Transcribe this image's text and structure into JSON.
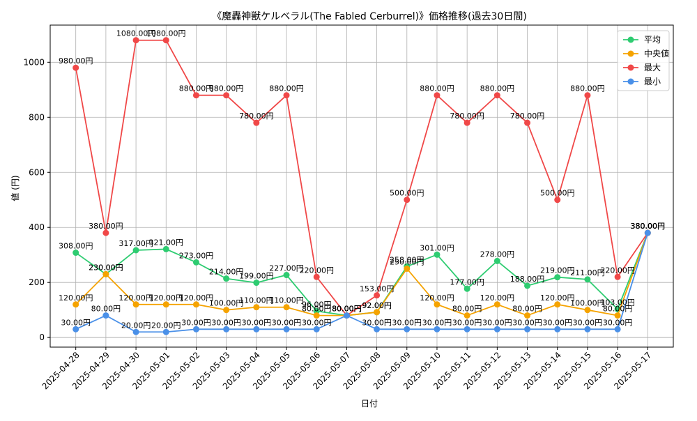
{
  "chart_data": {
    "type": "line",
    "title": "《魔轟神獣ケルベラル(The Fabled Cerburrel)》価格推移(過去30日間)",
    "xlabel": "日付",
    "ylabel": "値 (円)",
    "ylim": [
      -35,
      1135
    ],
    "yticks": [
      0,
      200,
      400,
      600,
      800,
      1000
    ],
    "grid": true,
    "legend_position": "top-right",
    "label_suffix": "円",
    "categories": [
      "2025-04-28",
      "2025-04-29",
      "2025-04-30",
      "2025-05-01",
      "2025-05-02",
      "2025-05-03",
      "2025-05-04",
      "2025-05-05",
      "2025-05-06",
      "2025-05-07",
      "2025-05-08",
      "2025-05-09",
      "2025-05-10",
      "2025-05-11",
      "2025-05-12",
      "2025-05-13",
      "2025-05-14",
      "2025-05-15",
      "2025-05-16",
      "2025-05-17"
    ],
    "series": [
      {
        "name": "平均",
        "color": "#2ecc71",
        "values": [
          308,
          230,
          317,
          321,
          273,
          214,
          199,
          227,
          96,
          80,
          92,
          258,
          301,
          177,
          278,
          188,
          219,
          211,
          103,
          380
        ]
      },
      {
        "name": "中央値",
        "color": "#f5a300",
        "values": [
          120,
          230,
          120,
          120,
          120,
          100,
          110,
          110,
          80,
          80,
          92,
          250,
          120,
          80,
          120,
          80,
          120,
          100,
          80,
          380
        ]
      },
      {
        "name": "最大",
        "color": "#f04848",
        "values": [
          980,
          380,
          1080,
          1080,
          880,
          880,
          780,
          880,
          220,
          80,
          153,
          500,
          880,
          780,
          880,
          780,
          500,
          880,
          220,
          380
        ]
      },
      {
        "name": "最小",
        "color": "#4a90e8",
        "values": [
          30,
          80,
          20,
          20,
          30,
          30,
          30,
          30,
          30,
          80,
          30,
          30,
          30,
          30,
          30,
          30,
          30,
          30,
          30,
          380
        ]
      }
    ]
  }
}
